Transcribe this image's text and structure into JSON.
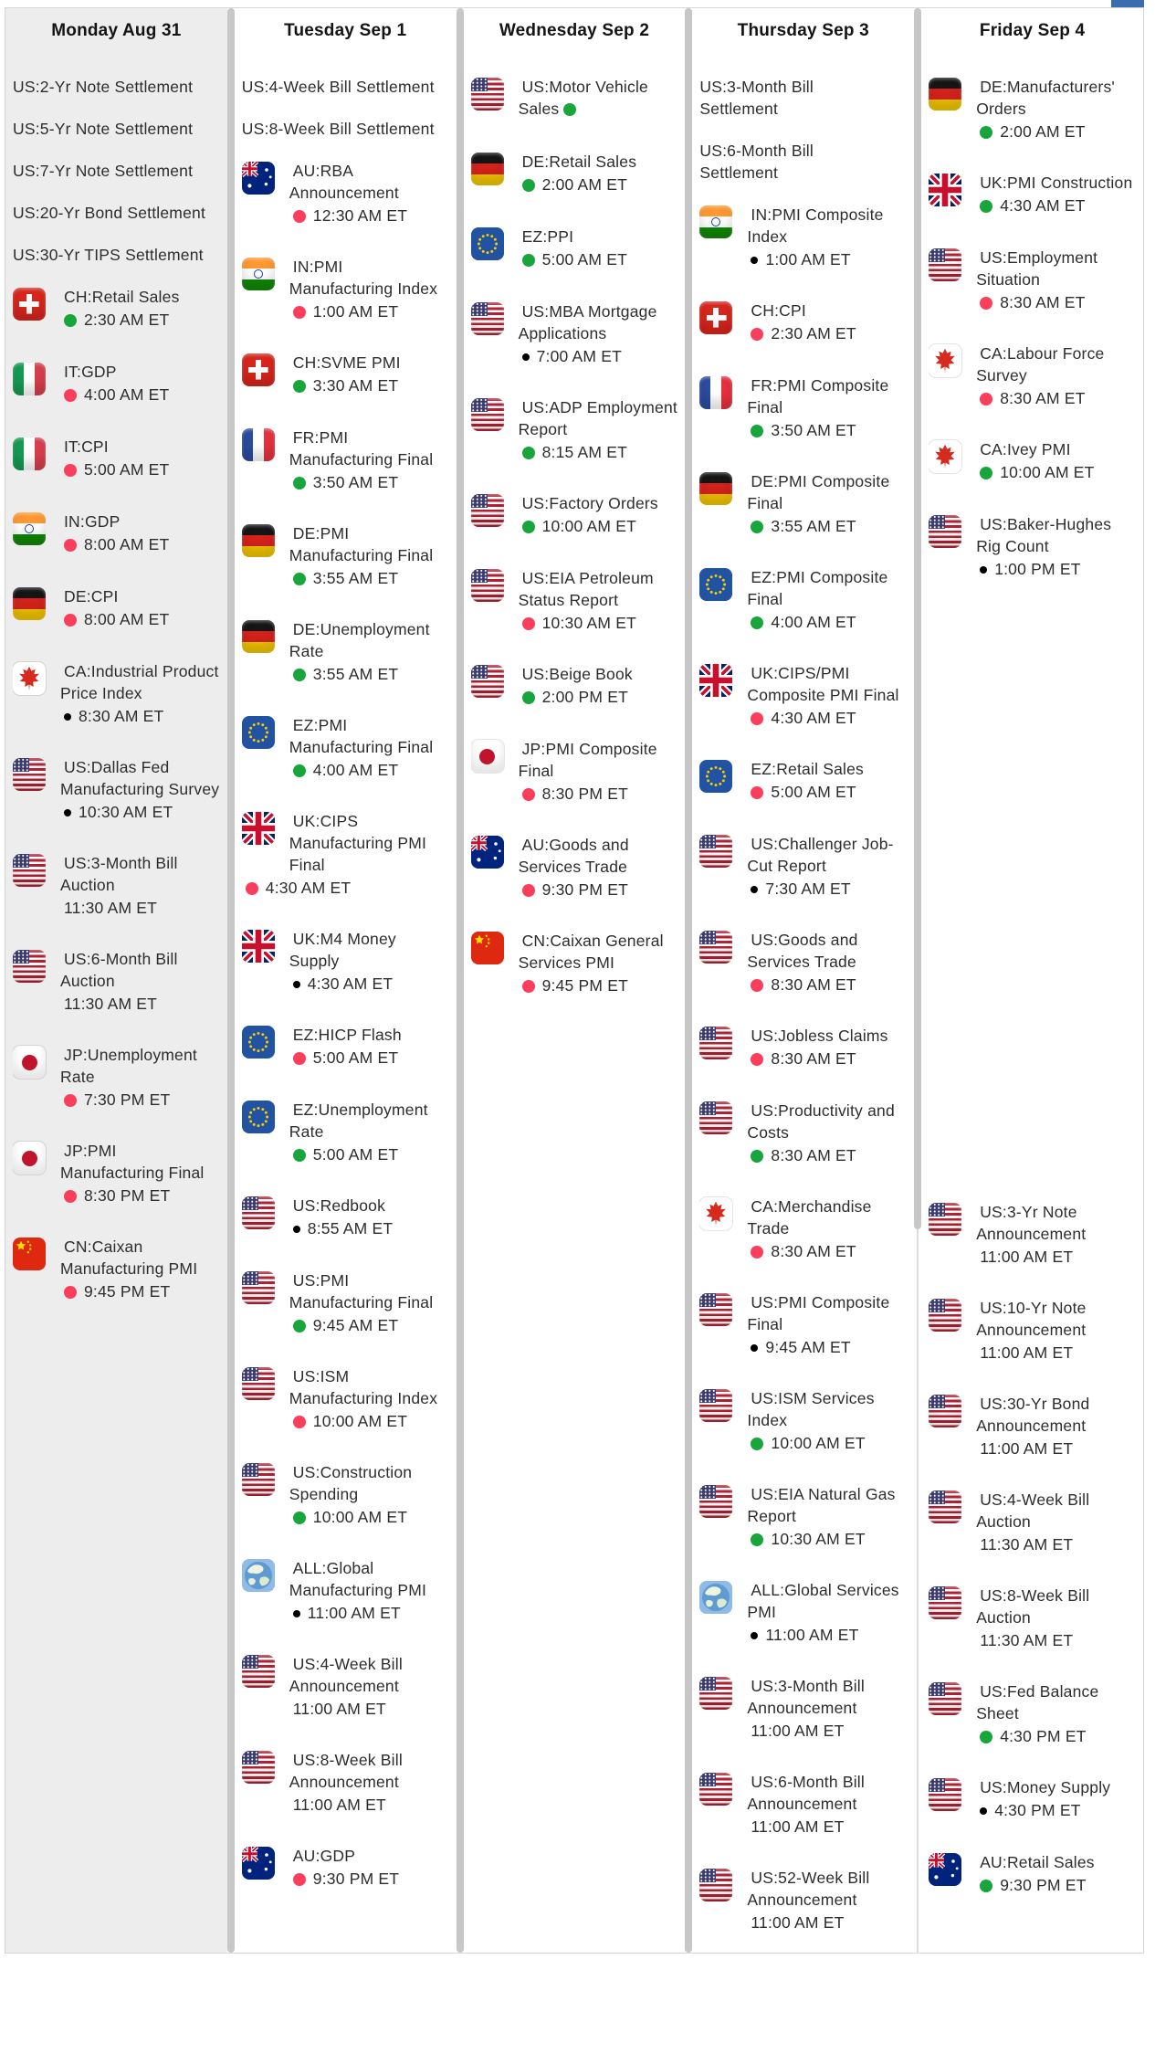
{
  "page": {
    "title": "Economic Calendar Week View",
    "background": "#ffffff",
    "monday_highlight_bg": "#ededed"
  },
  "toolbar": {
    "partial_blue_button_color": "#3a6db0"
  },
  "legend_colors": {
    "red_dot": "#fb3e5c",
    "green_dot": "#18a53b",
    "black_dot": "#000000"
  },
  "scrollbars": {
    "thumb_color": "#c7c7c7",
    "track_color": "#dcdcdc"
  },
  "calendar": {
    "columns": [
      {
        "id": "monday",
        "header": "Monday Aug 31",
        "highlighted": true,
        "sections": [
          [
            {
              "flag": null,
              "name": "US:2-Yr Note Settlement",
              "dot": null,
              "time": null
            },
            {
              "flag": null,
              "name": "US:5-Yr Note Settlement",
              "dot": null,
              "time": null
            },
            {
              "flag": null,
              "name": "US:7-Yr Note Settlement",
              "dot": null,
              "time": null
            },
            {
              "flag": null,
              "name": "US:20-Yr Bond Settlement",
              "dot": null,
              "time": null
            },
            {
              "flag": null,
              "name": "US:30-Yr TIPS Settlement",
              "dot": null,
              "time": null
            },
            {
              "flag": "CH",
              "name": "CH:Retail Sales",
              "dot": "green",
              "time": "2:30 AM ET"
            },
            {
              "flag": "IT",
              "name": "IT:GDP",
              "dot": "red",
              "time": "4:00 AM ET"
            },
            {
              "flag": "IT",
              "name": "IT:CPI",
              "dot": "red",
              "time": "5:00 AM ET"
            },
            {
              "flag": "IN",
              "name": "IN:GDP",
              "dot": "red",
              "time": "8:00 AM ET"
            },
            {
              "flag": "DE",
              "name": "DE:CPI",
              "dot": "red",
              "time": "8:00 AM ET"
            },
            {
              "flag": "CA",
              "name": "CA:Industrial Product Price Index",
              "dot": "black",
              "time": "8:30 AM ET"
            },
            {
              "flag": "US",
              "name": "US:Dallas Fed Manufacturing Survey",
              "dot": "black",
              "time": "10:30 AM ET"
            },
            {
              "flag": "US",
              "name": "US:3-Month Bill Auction",
              "dot": null,
              "time": "11:30 AM ET"
            },
            {
              "flag": "US",
              "name": "US:6-Month Bill Auction",
              "dot": null,
              "time": "11:30 AM ET"
            },
            {
              "flag": "JP",
              "name": "JP:Unemployment Rate",
              "dot": "red",
              "time": "7:30 PM ET"
            },
            {
              "flag": "JP",
              "name": "JP:PMI Manufacturing Final",
              "dot": "red",
              "time": "8:30 PM ET"
            },
            {
              "flag": "CN",
              "name": "CN:Caixan Manufacturing PMI",
              "dot": "red",
              "time": "9:45 PM ET"
            }
          ]
        ]
      },
      {
        "id": "tuesday",
        "header": "Tuesday Sep 1",
        "highlighted": false,
        "sections": [
          [
            {
              "flag": null,
              "name": "US:4-Week Bill Settlement",
              "dot": null,
              "time": null
            },
            {
              "flag": null,
              "name": "US:8-Week Bill Settlement",
              "dot": null,
              "time": null
            },
            {
              "flag": "AU",
              "name": "AU:RBA Announcement",
              "dot": "red",
              "time": "12:30 AM ET"
            },
            {
              "flag": "IN",
              "name": "IN:PMI Manufacturing Index",
              "dot": "red",
              "time": "1:00 AM ET"
            },
            {
              "flag": "CH",
              "name": "CH:SVME PMI",
              "dot": "green",
              "time": "3:30 AM ET"
            },
            {
              "flag": "FR",
              "name": "FR:PMI Manufacturing Final",
              "dot": "green",
              "time": "3:50 AM ET"
            },
            {
              "flag": "DE",
              "name": "DE:PMI Manufacturing Final",
              "dot": "green",
              "time": "3:55 AM ET"
            },
            {
              "flag": "DE",
              "name": "DE:Unemployment Rate",
              "dot": "green",
              "time": "3:55 AM ET"
            },
            {
              "flag": "EZ",
              "name": "EZ:PMI Manufacturing Final",
              "dot": "green",
              "time": "4:00 AM ET"
            },
            {
              "flag": "UK",
              "name": "UK:CIPS Manufacturing PMI Final",
              "dot": "red",
              "time": "4:30 AM ET"
            },
            {
              "flag": "UK",
              "name": "UK:M4 Money Supply",
              "dot": "black",
              "time": "4:30 AM ET"
            },
            {
              "flag": "EZ",
              "name": "EZ:HICP Flash",
              "dot": "red",
              "time": "5:00 AM ET"
            },
            {
              "flag": "EZ",
              "name": "EZ:Unemployment Rate",
              "dot": "green",
              "time": "5:00 AM ET"
            },
            {
              "flag": "US",
              "name": "US:Redbook",
              "dot": "black",
              "time": "8:55 AM ET"
            },
            {
              "flag": "US",
              "name": "US:PMI Manufacturing Final",
              "dot": "green",
              "time": "9:45 AM ET"
            },
            {
              "flag": "US",
              "name": "US:ISM Manufacturing Index",
              "dot": "red",
              "time": "10:00 AM ET"
            },
            {
              "flag": "US",
              "name": "US:Construction Spending",
              "dot": "green",
              "time": "10:00 AM ET"
            },
            {
              "flag": "ALL",
              "name": "ALL:Global Manufacturing PMI",
              "dot": "black",
              "time": "11:00 AM ET"
            },
            {
              "flag": "US",
              "name": "US:4-Week Bill Announcement",
              "dot": null,
              "time": "11:00 AM ET"
            },
            {
              "flag": "US",
              "name": "US:8-Week Bill Announcement",
              "dot": null,
              "time": "11:00 AM ET"
            },
            {
              "flag": "AU",
              "name": "AU:GDP",
              "dot": "red",
              "time": "9:30 PM ET"
            }
          ]
        ]
      },
      {
        "id": "wednesday",
        "header": "Wednesday Sep 2",
        "highlighted": false,
        "sections": [
          [
            {
              "flag": "US",
              "name": "US:Motor Vehicle Sales",
              "dot": "green",
              "time": null,
              "dot_inline": true
            },
            {
              "flag": "DE",
              "name": "DE:Retail Sales",
              "dot": "green",
              "time": "2:00 AM ET"
            },
            {
              "flag": "EZ",
              "name": "EZ:PPI",
              "dot": "green",
              "time": "5:00 AM ET"
            },
            {
              "flag": "US",
              "name": "US:MBA Mortgage Applications",
              "dot": "black",
              "time": "7:00 AM ET"
            },
            {
              "flag": "US",
              "name": "US:ADP Employment Report",
              "dot": "green",
              "time": "8:15 AM ET"
            },
            {
              "flag": "US",
              "name": "US:Factory Orders",
              "dot": "green",
              "time": "10:00 AM ET"
            },
            {
              "flag": "US",
              "name": "US:EIA Petroleum Status Report",
              "dot": "red",
              "time": "10:30 AM ET"
            },
            {
              "flag": "US",
              "name": "US:Beige Book",
              "dot": "green",
              "time": "2:00 PM ET"
            },
            {
              "flag": "JP",
              "name": "JP:PMI Composite Final",
              "dot": "red",
              "time": "8:30 PM ET"
            },
            {
              "flag": "AU",
              "name": "AU:Goods and Services Trade",
              "dot": "red",
              "time": "9:30 PM ET"
            },
            {
              "flag": "CN",
              "name": "CN:Caixan General Services PMI",
              "dot": "red",
              "time": "9:45 PM ET"
            }
          ]
        ]
      },
      {
        "id": "thursday",
        "header": "Thursday Sep 3",
        "highlighted": false,
        "sections": [
          [
            {
              "flag": null,
              "name": "US:3-Month Bill Settlement",
              "dot": null,
              "time": null
            },
            {
              "flag": null,
              "name": "US:6-Month Bill Settlement",
              "dot": null,
              "time": null
            },
            {
              "flag": "IN",
              "name": "IN:PMI Composite Index",
              "dot": "black",
              "time": "1:00 AM ET"
            },
            {
              "flag": "CH",
              "name": "CH:CPI",
              "dot": "red",
              "time": "2:30 AM ET"
            },
            {
              "flag": "FR",
              "name": "FR:PMI Composite Final",
              "dot": "green",
              "time": "3:50 AM ET"
            },
            {
              "flag": "DE",
              "name": "DE:PMI Composite Final",
              "dot": "green",
              "time": "3:55 AM ET"
            },
            {
              "flag": "EZ",
              "name": "EZ:PMI Composite Final",
              "dot": "green",
              "time": "4:00 AM ET"
            },
            {
              "flag": "UK",
              "name": "UK:CIPS/PMI Composite PMI Final",
              "dot": "red",
              "time": "4:30 AM ET"
            },
            {
              "flag": "EZ",
              "name": "EZ:Retail Sales",
              "dot": "red",
              "time": "5:00 AM ET"
            },
            {
              "flag": "US",
              "name": "US:Challenger Job-Cut Report",
              "dot": "black",
              "time": "7:30 AM ET"
            },
            {
              "flag": "US",
              "name": "US:Goods and Services Trade",
              "dot": "red",
              "time": "8:30 AM ET"
            },
            {
              "flag": "US",
              "name": "US:Jobless Claims",
              "dot": "red",
              "time": "8:30 AM ET"
            },
            {
              "flag": "US",
              "name": "US:Productivity and Costs",
              "dot": "green",
              "time": "8:30 AM ET"
            },
            {
              "flag": "CA",
              "name": "CA:Merchandise Trade",
              "dot": "red",
              "time": "8:30 AM ET"
            },
            {
              "flag": "US",
              "name": "US:PMI Composite Final",
              "dot": "black",
              "time": "9:45 AM ET"
            },
            {
              "flag": "US",
              "name": "US:ISM Services Index",
              "dot": "green",
              "time": "10:00 AM ET"
            },
            {
              "flag": "US",
              "name": "US:EIA Natural Gas Report",
              "dot": "green",
              "time": "10:30 AM ET"
            },
            {
              "flag": "ALL",
              "name": "ALL:Global Services PMI",
              "dot": "black",
              "time": "11:00 AM ET"
            },
            {
              "flag": "US",
              "name": "US:3-Month Bill Announcement",
              "dot": null,
              "time": "11:00 AM ET"
            },
            {
              "flag": "US",
              "name": "US:6-Month Bill Announcement",
              "dot": null,
              "time": "11:00 AM ET"
            },
            {
              "flag": "US",
              "name": "US:52-Week Bill Announcement",
              "dot": null,
              "time": "11:00 AM ET"
            }
          ]
        ]
      },
      {
        "id": "friday",
        "header": "Friday Sep 4",
        "highlighted": false,
        "sections": [
          [
            {
              "flag": "DE",
              "name": "DE:Manufacturers' Orders",
              "dot": "green",
              "time": "2:00 AM ET"
            },
            {
              "flag": "UK",
              "name": "UK:PMI Construction",
              "dot": "green",
              "time": "4:30 AM ET"
            },
            {
              "flag": "US",
              "name": "US:Employment Situation",
              "dot": "red",
              "time": "8:30 AM ET"
            },
            {
              "flag": "CA",
              "name": "CA:Labour Force Survey",
              "dot": "red",
              "time": "8:30 AM ET"
            },
            {
              "flag": "CA",
              "name": "CA:Ivey PMI",
              "dot": "green",
              "time": "10:00 AM ET"
            },
            {
              "flag": "US",
              "name": "US:Baker-Hughes Rig Count",
              "dot": "black",
              "time": "1:00 PM ET"
            }
          ],
          [
            {
              "flag": "US",
              "name": "US:3-Yr Note Announcement",
              "dot": null,
              "time": "11:00 AM ET"
            },
            {
              "flag": "US",
              "name": "US:10-Yr Note Announcement",
              "dot": null,
              "time": "11:00 AM ET"
            },
            {
              "flag": "US",
              "name": "US:30-Yr Bond Announcement",
              "dot": null,
              "time": "11:00 AM ET"
            },
            {
              "flag": "US",
              "name": "US:4-Week Bill Auction",
              "dot": null,
              "time": "11:30 AM ET"
            },
            {
              "flag": "US",
              "name": "US:8-Week Bill Auction",
              "dot": null,
              "time": "11:30 AM ET"
            },
            {
              "flag": "US",
              "name": "US:Fed Balance Sheet",
              "dot": "green",
              "time": "4:30 PM ET"
            },
            {
              "flag": "US",
              "name": "US:Money Supply",
              "dot": "black",
              "time": "4:30 PM ET"
            },
            {
              "flag": "AU",
              "name": "AU:Retail Sales",
              "dot": "green",
              "time": "9:30 PM ET"
            }
          ]
        ]
      }
    ]
  }
}
